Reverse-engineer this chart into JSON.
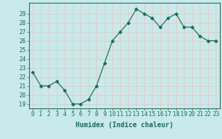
{
  "x": [
    0,
    1,
    2,
    3,
    4,
    5,
    6,
    7,
    8,
    9,
    10,
    11,
    12,
    13,
    14,
    15,
    16,
    17,
    18,
    19,
    20,
    21,
    22,
    23
  ],
  "y": [
    22.5,
    21.0,
    21.0,
    21.5,
    20.5,
    19.0,
    19.0,
    19.5,
    21.0,
    23.5,
    26.0,
    27.0,
    28.0,
    29.5,
    29.0,
    28.5,
    27.5,
    28.5,
    29.0,
    27.5,
    27.5,
    26.5,
    26.0,
    26.0
  ],
  "line_color": "#1a6b5a",
  "marker": "D",
  "marker_size": 2.5,
  "bg_color": "#c8eaea",
  "grid_color": "#e8c8c8",
  "xlabel": "Humidex (Indice chaleur)",
  "ylabel_ticks": [
    19,
    20,
    21,
    22,
    23,
    24,
    25,
    26,
    27,
    28,
    29
  ],
  "ylim": [
    18.5,
    30.2
  ],
  "xlim": [
    -0.5,
    23.5
  ],
  "xticks": [
    0,
    1,
    2,
    3,
    4,
    5,
    6,
    7,
    8,
    9,
    10,
    11,
    12,
    13,
    14,
    15,
    16,
    17,
    18,
    19,
    20,
    21,
    22,
    23
  ],
  "tick_color": "#1a6b5a",
  "label_fontsize": 7.0,
  "tick_fontsize": 6.0
}
